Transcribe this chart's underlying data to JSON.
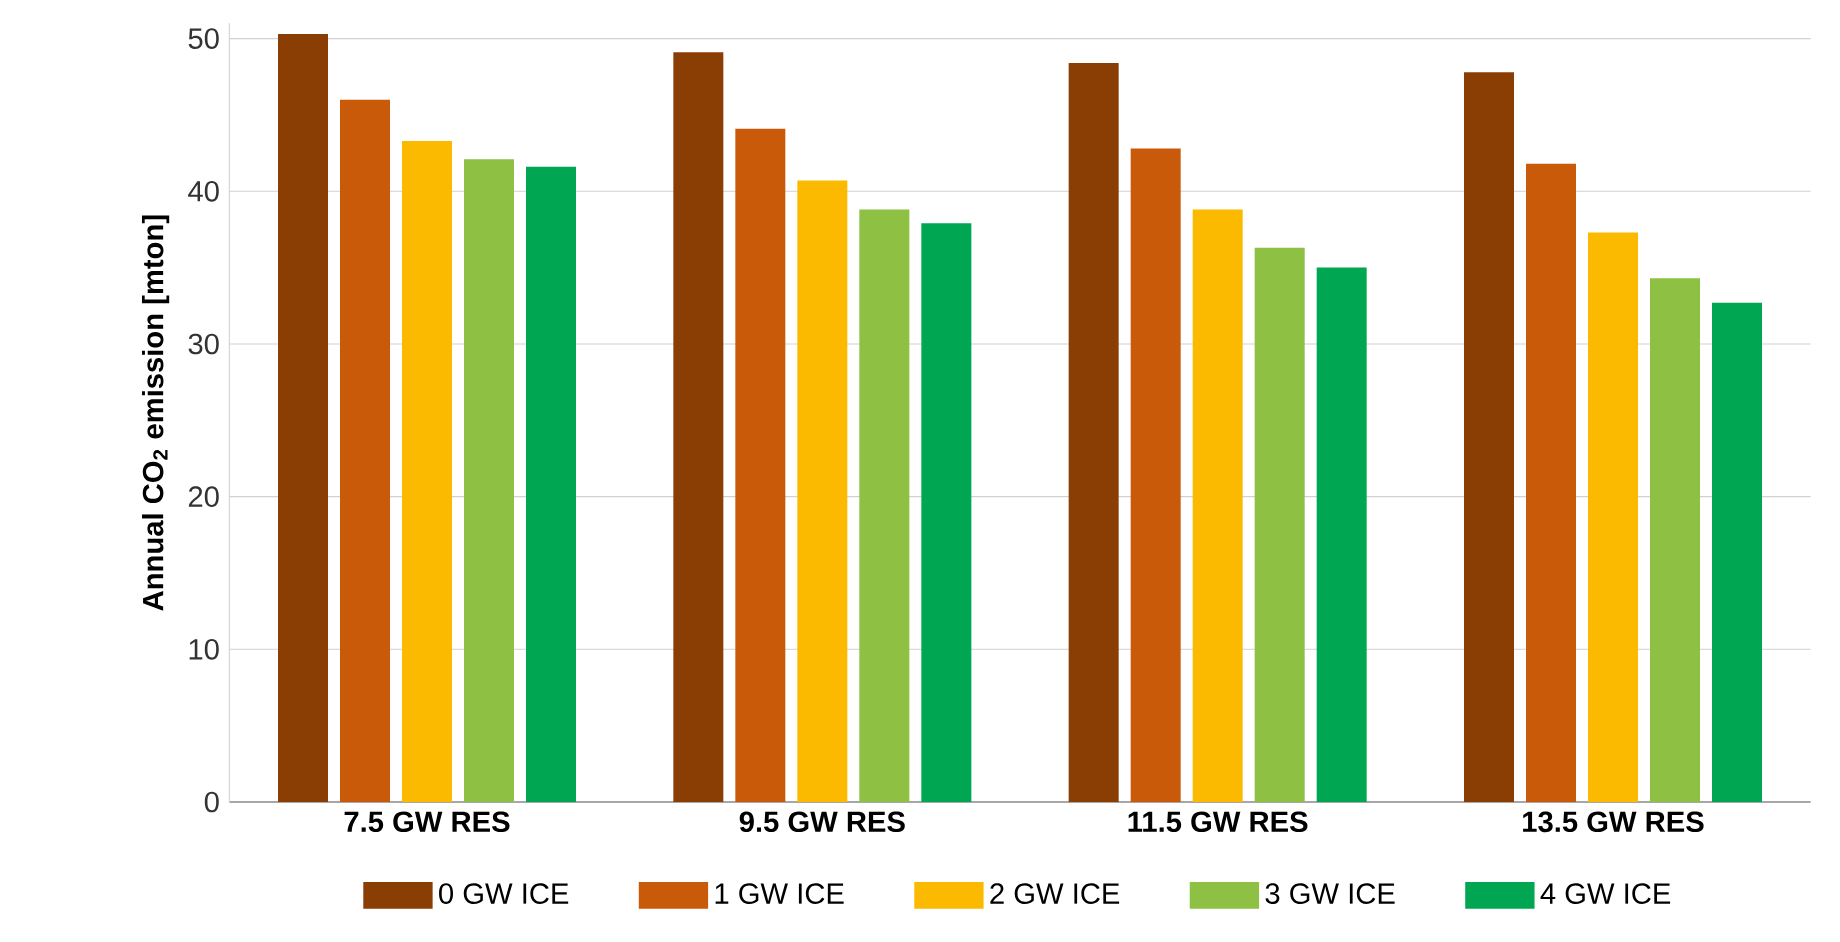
{
  "chart_data": {
    "type": "bar",
    "ylabel": "Annual CO$_{2}$ emission [mton]",
    "categories": [
      "7.5 GW RES",
      "9.5 GW RES",
      "11.5 GW RES",
      "13.5 GW RES"
    ],
    "series": [
      {
        "name": "0 GW ICE",
        "color": "#8b3e03",
        "values": [
          50.3,
          49.1,
          48.4,
          47.8
        ]
      },
      {
        "name": "1 GW ICE",
        "color": "#c85a0a",
        "values": [
          46.0,
          44.1,
          42.8,
          41.8
        ]
      },
      {
        "name": "2 GW ICE",
        "color": "#fbba00",
        "values": [
          43.3,
          40.7,
          38.8,
          37.3
        ]
      },
      {
        "name": "3 GW ICE",
        "color": "#8dc043",
        "values": [
          42.1,
          38.8,
          36.3,
          34.3
        ]
      },
      {
        "name": "4 GW ICE",
        "color": "#00a651",
        "values": [
          41.6,
          37.9,
          35.0,
          32.7
        ]
      }
    ],
    "ylim": [
      0,
      51
    ],
    "yticks": [
      0,
      10,
      20,
      30,
      40,
      50
    ],
    "grid": "y",
    "legend": "bottom"
  }
}
